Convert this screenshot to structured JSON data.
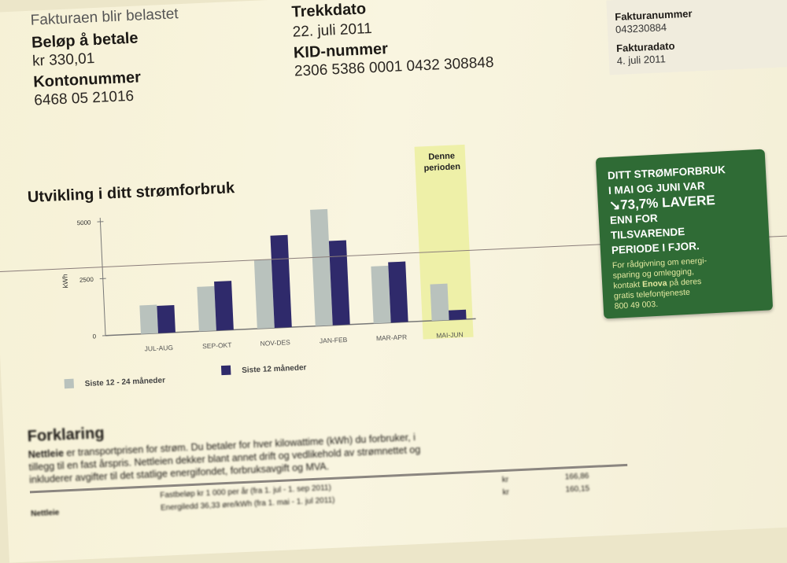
{
  "header": {
    "cut_text": "Fakturaen blir belastet",
    "amount_label": "Beløp å betale",
    "amount_value": "kr 330,01",
    "account_label": "Kontonummer",
    "account_value": "6468 05 21016",
    "draw_date_label": "Trekkdato",
    "draw_date_value": "22. juli 2011",
    "kid_label": "KID-nummer",
    "kid_value": "2306 5386 0001 0432 308848",
    "invoice_number_label": "Fakturanummer",
    "invoice_number_value": "043230884",
    "invoice_date_label": "Fakturadato",
    "invoice_date_value": "4. juli 2011"
  },
  "notice": {
    "line1": "DITT STRØMFORBRUK",
    "line2": "I MAI OG JUNI VAR",
    "line3": "↘73,7% LAVERE",
    "line4": "ENN FOR",
    "line5": "TILSVARENDE",
    "line6": "PERIODE I FJOR.",
    "sub1": "For rådgivning om energi-",
    "sub2": "sparing og omlegging,",
    "sub3_pre": "kontakt ",
    "sub3_bold": "Enova",
    "sub3_post": " på deres",
    "sub4": "gratis telefontjeneste",
    "sub5": "800 49 003.",
    "color": "#2f6b35"
  },
  "chart_data": {
    "type": "bar",
    "title": "Utvikling i ditt strømforbruk",
    "ylabel": "kWh",
    "xlabel": "",
    "ylim": [
      0,
      5000
    ],
    "yticks": [
      "0",
      "2500",
      "5000"
    ],
    "categories": [
      "JUL-AUG",
      "SEP-OKT",
      "NOV-DES",
      "JAN-FEB",
      "MAR-APR",
      "MAI-JUN"
    ],
    "highlight": {
      "category": "MAI-JUN",
      "label_line1": "Denne",
      "label_line2": "perioden",
      "color": "#eef0a8"
    },
    "series": [
      {
        "name": "Siste 12 - 24 måneder",
        "color": "#b9c2bd",
        "values": [
          1250,
          1950,
          3000,
          5100,
          2500,
          1600
        ]
      },
      {
        "name": "Siste 12 måneder",
        "color": "#2f2a6b",
        "values": [
          1200,
          2150,
          4050,
          3700,
          2650,
          420
        ]
      }
    ],
    "legend_position": "bottom-left",
    "grid": false
  },
  "explanation": {
    "title": "Forklaring",
    "bold_term": "Nettleie",
    "line1": " er transportprisen for strøm. Du betaler for hver kilowattime (kWh) du forbruker, i",
    "line2": "tillegg til en fast årspris. Nettleien dekker blant annet drift og vedlikehold av strømnettet og",
    "line3": "inkluderer avgifter til det statlige energifondet, forbruksavgift og MVA.",
    "rows": [
      {
        "label": "",
        "desc": "Fastbeløp kr 1 000 per år (fra 1. jul - 1. sep 2011)",
        "cur": "kr",
        "amount": "166,86"
      },
      {
        "label": "Nettleie",
        "desc": "Energiledd 36,33 øre/kWh (fra 1. mai - 1. jul 2011)",
        "cur": "kr",
        "amount": "160,15"
      }
    ]
  }
}
